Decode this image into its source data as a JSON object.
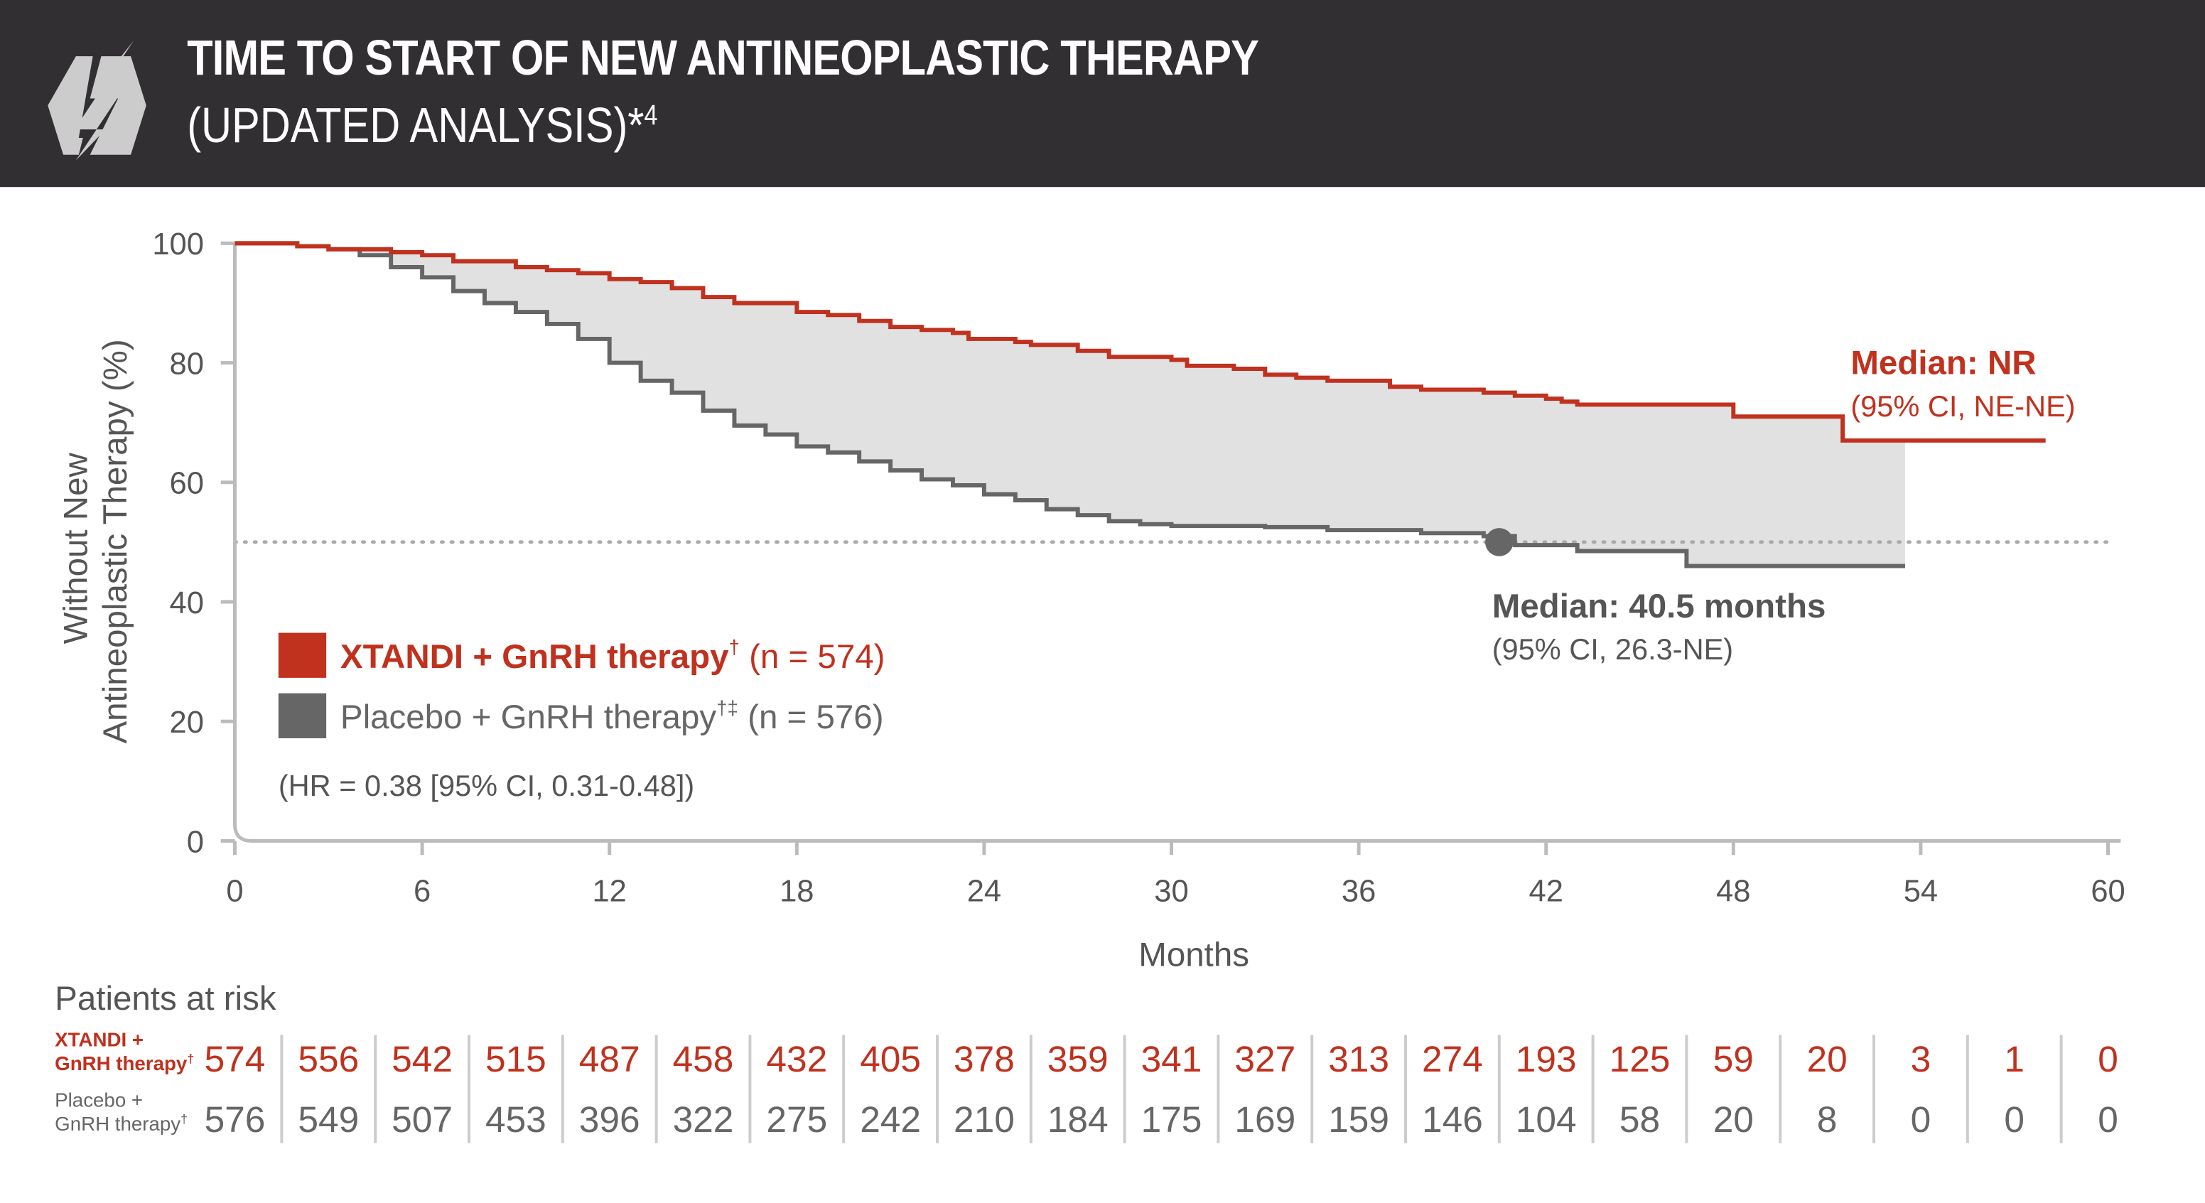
{
  "header": {
    "title": "TIME TO START OF NEW ANTINEOPLASTIC THERAPY",
    "subtitle": "(UPDATED ANALYSIS)*",
    "subtitle_sup": "4",
    "icon": "lightning-hexagon-icon"
  },
  "chart_data": {
    "type": "line",
    "step": true,
    "ylabel_line1": "Without New",
    "ylabel_line2": "Antineoplastic Therapy (%)",
    "xlabel": "Months",
    "xlim": [
      0,
      60
    ],
    "ylim": [
      0,
      100
    ],
    "xticks": [
      0,
      6,
      12,
      18,
      24,
      30,
      36,
      42,
      48,
      54,
      60
    ],
    "yticks": [
      0,
      20,
      40,
      60,
      80,
      100
    ],
    "reference_line_y": 50,
    "colors": {
      "xtandi": "#c0311e",
      "placebo": "#666666",
      "fill": "#e1e1e1"
    },
    "series": [
      {
        "name": "XTANDI + GnRH therapy",
        "sup": "†",
        "n": "(n = 574)",
        "color": "#c0311e",
        "points": [
          [
            0,
            100
          ],
          [
            2,
            99.5
          ],
          [
            3,
            99
          ],
          [
            5,
            98.5
          ],
          [
            6,
            98
          ],
          [
            7,
            97
          ],
          [
            9,
            96
          ],
          [
            10,
            95.5
          ],
          [
            11,
            95
          ],
          [
            12,
            94
          ],
          [
            13,
            93.5
          ],
          [
            14,
            92.5
          ],
          [
            15,
            91
          ],
          [
            16,
            90
          ],
          [
            18,
            88.5
          ],
          [
            19,
            88
          ],
          [
            20,
            87
          ],
          [
            21,
            86
          ],
          [
            22,
            85.5
          ],
          [
            23,
            85
          ],
          [
            23.5,
            84
          ],
          [
            25,
            83.5
          ],
          [
            25.5,
            83
          ],
          [
            27,
            82
          ],
          [
            28,
            81
          ],
          [
            30,
            80.5
          ],
          [
            30.5,
            79.5
          ],
          [
            32,
            79
          ],
          [
            33,
            78
          ],
          [
            34,
            77.5
          ],
          [
            35,
            77
          ],
          [
            37,
            76
          ],
          [
            38,
            75.5
          ],
          [
            40,
            75
          ],
          [
            41,
            74.5
          ],
          [
            42,
            74
          ],
          [
            42.5,
            73.5
          ],
          [
            43,
            73
          ],
          [
            48,
            71
          ],
          [
            51.5,
            67
          ],
          [
            58,
            67
          ]
        ]
      },
      {
        "name": "Placebo + GnRH therapy",
        "sup": "†‡",
        "n": "(n = 576)",
        "color": "#666666",
        "points": [
          [
            0,
            100
          ],
          [
            2,
            99.5
          ],
          [
            3,
            99
          ],
          [
            4,
            98
          ],
          [
            5,
            96
          ],
          [
            6,
            94.3
          ],
          [
            7,
            92
          ],
          [
            8,
            90
          ],
          [
            9,
            88.5
          ],
          [
            10,
            86.5
          ],
          [
            11,
            84
          ],
          [
            12,
            80
          ],
          [
            13,
            77
          ],
          [
            14,
            75
          ],
          [
            15,
            72
          ],
          [
            16,
            69.5
          ],
          [
            17,
            68
          ],
          [
            18,
            66
          ],
          [
            19,
            65
          ],
          [
            20,
            63.5
          ],
          [
            21,
            62
          ],
          [
            22,
            60.5
          ],
          [
            23,
            59.5
          ],
          [
            24,
            58
          ],
          [
            25,
            57
          ],
          [
            26,
            55.5
          ],
          [
            27,
            54.5
          ],
          [
            28,
            53.5
          ],
          [
            29,
            53
          ],
          [
            30,
            52.7
          ],
          [
            33,
            52.5
          ],
          [
            35,
            52
          ],
          [
            38,
            51.5
          ],
          [
            40,
            51
          ],
          [
            41,
            49.5
          ],
          [
            43,
            48.5
          ],
          [
            46.5,
            46
          ],
          [
            53.5,
            46
          ]
        ]
      }
    ],
    "annotations": {
      "xtandi_median": "Median: NR",
      "xtandi_ci": "(95% CI, NE-NE)",
      "placebo_median": "Median: 40.5 months",
      "placebo_ci": "(95% CI, 26.3-NE)",
      "placebo_median_month": 40.5,
      "hr": "(HR = 0.38 [95% CI, 0.31-0.48])"
    },
    "at_risk": {
      "title": "Patients at risk",
      "months": [
        0,
        3,
        6,
        9,
        12,
        15,
        18,
        21,
        24,
        27,
        30,
        33,
        36,
        39,
        42,
        45,
        48,
        51,
        54,
        57,
        60
      ],
      "rows": [
        {
          "label1": "XTANDI +",
          "label2": "GnRH therapy",
          "sup": "†",
          "values": [
            574,
            556,
            542,
            515,
            487,
            458,
            432,
            405,
            378,
            359,
            341,
            327,
            313,
            274,
            193,
            125,
            59,
            20,
            3,
            1,
            0
          ]
        },
        {
          "label1": "Placebo +",
          "label2": "GnRH therapy",
          "sup": "†",
          "values": [
            576,
            549,
            507,
            453,
            396,
            322,
            275,
            242,
            210,
            184,
            175,
            169,
            159,
            146,
            104,
            58,
            20,
            8,
            0,
            0,
            0
          ]
        }
      ]
    }
  }
}
